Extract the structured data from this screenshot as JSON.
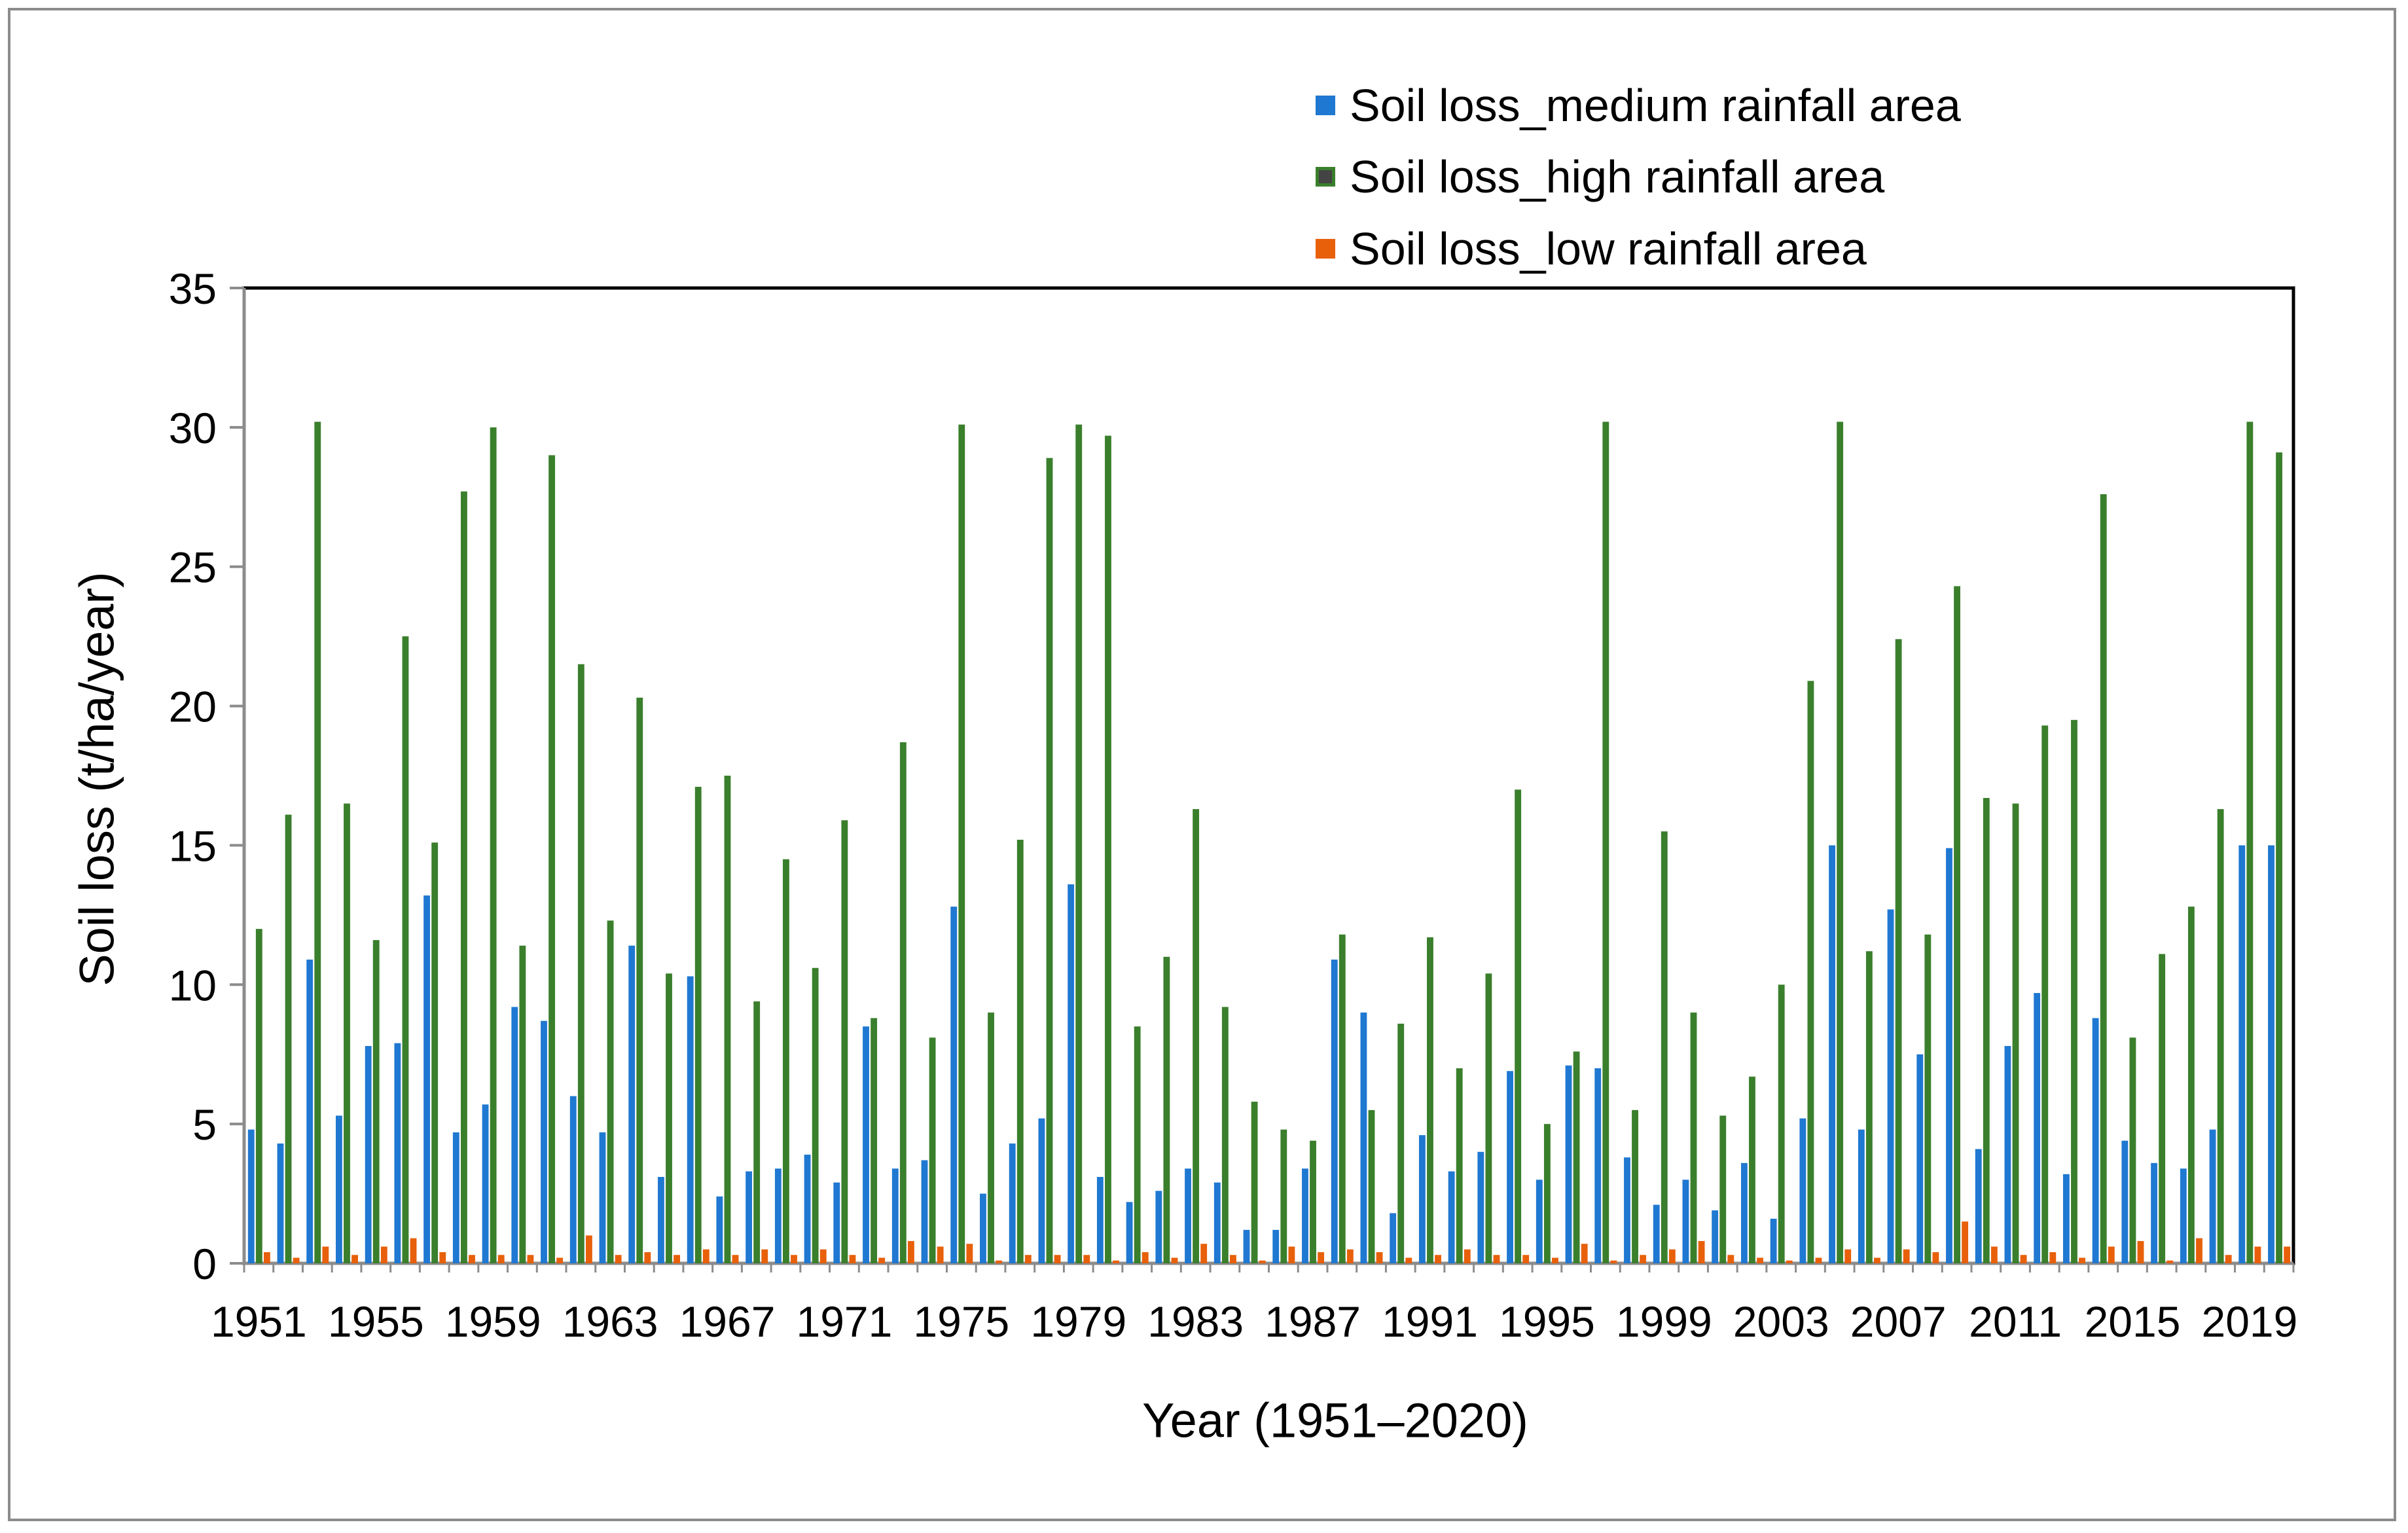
{
  "chart_data": {
    "type": "bar",
    "title": "",
    "xlabel": "Year (1951–2020)",
    "ylabel": "Soil loss (t/ha/year)",
    "ylim": [
      0,
      35
    ],
    "yticks": [
      0,
      5,
      10,
      15,
      20,
      25,
      30,
      35
    ],
    "grid": false,
    "legend_position": "top",
    "x_tick_labels": [
      "1951",
      "1955",
      "1959",
      "1963",
      "1967",
      "1971",
      "1975",
      "1979",
      "1983",
      "1987",
      "1991",
      "1995",
      "1999",
      "2003",
      "2007",
      "2011",
      "2015",
      "2019"
    ],
    "categories": [
      1951,
      1952,
      1953,
      1954,
      1955,
      1956,
      1957,
      1958,
      1959,
      1960,
      1961,
      1962,
      1963,
      1964,
      1965,
      1966,
      1967,
      1968,
      1969,
      1970,
      1971,
      1972,
      1973,
      1974,
      1975,
      1976,
      1977,
      1978,
      1979,
      1980,
      1981,
      1982,
      1983,
      1984,
      1985,
      1986,
      1987,
      1988,
      1989,
      1990,
      1991,
      1992,
      1993,
      1994,
      1995,
      1996,
      1997,
      1998,
      1999,
      2000,
      2001,
      2002,
      2003,
      2004,
      2005,
      2006,
      2007,
      2008,
      2009,
      2010,
      2011,
      2012,
      2013,
      2014,
      2015,
      2016,
      2017,
      2018,
      2019,
      2020
    ],
    "series": [
      {
        "name": "Soil loss_medium rainfall area",
        "color": "#1f78d1",
        "values": [
          4.8,
          4.3,
          10.9,
          5.3,
          7.8,
          7.9,
          13.2,
          4.7,
          5.7,
          9.2,
          8.7,
          6.0,
          4.7,
          11.4,
          3.1,
          10.3,
          2.4,
          3.3,
          3.4,
          3.9,
          2.9,
          8.5,
          3.4,
          3.7,
          12.8,
          2.5,
          4.3,
          5.2,
          13.6,
          3.1,
          2.2,
          2.6,
          3.4,
          2.9,
          1.2,
          1.2,
          3.4,
          10.9,
          9.0,
          1.8,
          4.6,
          3.3,
          4.0,
          6.9,
          3.0,
          7.1,
          7.0,
          3.8,
          2.1,
          3.0,
          1.9,
          3.6,
          1.6,
          5.2,
          15.0,
          4.8,
          12.7,
          7.5,
          14.9,
          4.1,
          7.8,
          9.7,
          3.2,
          8.8,
          4.4,
          3.6,
          3.4,
          4.8,
          15.0,
          15.0
        ]
      },
      {
        "name": "Soil loss_high rainfall area",
        "color": "#3a7f2c",
        "values": [
          12.0,
          16.1,
          30.2,
          16.5,
          11.6,
          22.5,
          15.1,
          27.7,
          30.0,
          11.4,
          29.0,
          21.5,
          12.3,
          20.3,
          10.4,
          17.1,
          17.5,
          9.4,
          14.5,
          10.6,
          15.9,
          8.8,
          18.7,
          8.1,
          30.1,
          9.0,
          15.2,
          28.9,
          30.1,
          29.7,
          8.5,
          11.0,
          16.3,
          9.2,
          5.8,
          4.8,
          4.4,
          11.8,
          5.5,
          8.6,
          11.7,
          7.0,
          10.4,
          17.0,
          5.0,
          7.6,
          30.2,
          5.5,
          15.5,
          9.0,
          5.3,
          6.7,
          10.0,
          20.9,
          30.2,
          11.2,
          22.4,
          11.8,
          24.3,
          16.7,
          16.5,
          19.3,
          19.5,
          27.6,
          8.1,
          11.1,
          12.8,
          16.3,
          30.2,
          29.1
        ]
      },
      {
        "name": "Soil loss_low rainfall area",
        "color": "#e8600a",
        "values": [
          0.4,
          0.2,
          0.6,
          0.3,
          0.6,
          0.9,
          0.4,
          0.3,
          0.3,
          0.3,
          0.2,
          1.0,
          0.3,
          0.4,
          0.3,
          0.5,
          0.3,
          0.5,
          0.3,
          0.5,
          0.3,
          0.2,
          0.8,
          0.6,
          0.7,
          0.1,
          0.3,
          0.3,
          0.3,
          0.1,
          0.4,
          0.2,
          0.7,
          0.3,
          0.1,
          0.6,
          0.4,
          0.5,
          0.4,
          0.2,
          0.3,
          0.5,
          0.3,
          0.3,
          0.2,
          0.7,
          0.1,
          0.3,
          0.5,
          0.8,
          0.3,
          0.2,
          0.1,
          0.2,
          0.5,
          0.2,
          0.5,
          0.4,
          1.5,
          0.6,
          0.3,
          0.4,
          0.2,
          0.6,
          0.8,
          0.1,
          0.9,
          0.3,
          0.6,
          0.6
        ]
      }
    ]
  }
}
